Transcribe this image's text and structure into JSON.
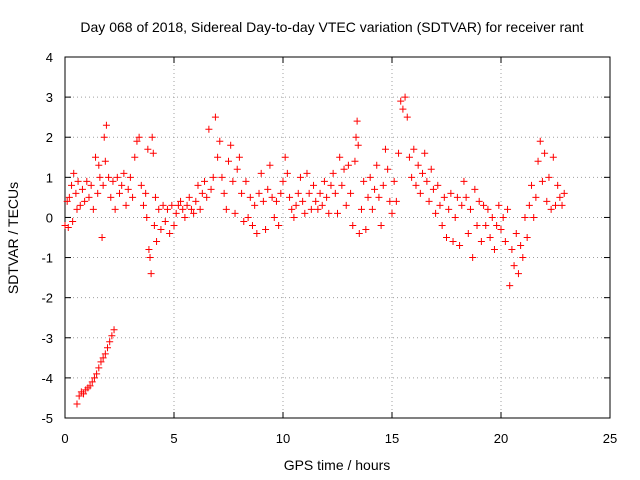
{
  "chart_data": {
    "type": "scatter",
    "title": "Day 068 of 2018, Sidereal Day-to-day VTEC variation (SDTVAR) for receiver rant",
    "xlabel": "GPS time / hours",
    "ylabel": "SDTVAR / TECUs",
    "xlim": [
      0,
      25
    ],
    "ylim": [
      -5,
      4
    ],
    "xticks": [
      0,
      5,
      10,
      15,
      20,
      25
    ],
    "xtick_labels": [
      "0",
      "5",
      "10",
      "15",
      "20",
      "25"
    ],
    "yticks": [
      -5,
      -4,
      -3,
      -2,
      -1,
      0,
      1,
      2,
      3,
      4
    ],
    "ytick_labels": [
      "-5",
      "-4",
      "-3",
      "-2",
      "-1",
      "0",
      "1",
      "2",
      "3",
      "4"
    ],
    "grid": true,
    "marker": "+",
    "series": [
      {
        "name": "SDTVAR",
        "color": "#ff0000",
        "points": [
          [
            0.0,
            -0.2
          ],
          [
            0.1,
            0.4
          ],
          [
            0.15,
            -0.25
          ],
          [
            0.2,
            0.5
          ],
          [
            0.3,
            0.8
          ],
          [
            0.35,
            -0.1
          ],
          [
            0.4,
            1.1
          ],
          [
            0.5,
            0.6
          ],
          [
            0.55,
            0.2
          ],
          [
            0.6,
            0.9
          ],
          [
            0.7,
            0.3
          ],
          [
            0.8,
            0.7
          ],
          [
            0.9,
            0.4
          ],
          [
            1.0,
            0.9
          ],
          [
            1.1,
            0.5
          ],
          [
            1.2,
            0.8
          ],
          [
            1.3,
            0.2
          ],
          [
            1.4,
            1.5
          ],
          [
            1.5,
            0.6
          ],
          [
            1.55,
            1.3
          ],
          [
            1.6,
            1.0
          ],
          [
            1.7,
            -0.5
          ],
          [
            1.75,
            0.8
          ],
          [
            1.8,
            2.0
          ],
          [
            1.85,
            1.4
          ],
          [
            1.9,
            2.3
          ],
          [
            2.0,
            1.0
          ],
          [
            2.1,
            0.5
          ],
          [
            2.2,
            0.9
          ],
          [
            2.3,
            0.2
          ],
          [
            2.4,
            1.0
          ],
          [
            2.5,
            0.6
          ],
          [
            2.6,
            0.8
          ],
          [
            2.7,
            1.1
          ],
          [
            2.8,
            0.3
          ],
          [
            2.9,
            0.7
          ],
          [
            3.0,
            1.0
          ],
          [
            3.1,
            0.5
          ],
          [
            3.2,
            1.5
          ],
          [
            3.3,
            1.9
          ],
          [
            3.4,
            2.0
          ],
          [
            3.5,
            0.8
          ],
          [
            3.6,
            0.3
          ],
          [
            3.7,
            0.6
          ],
          [
            3.75,
            0.0
          ],
          [
            3.8,
            1.7
          ],
          [
            3.85,
            -0.8
          ],
          [
            3.9,
            -1.0
          ],
          [
            3.95,
            -1.4
          ],
          [
            4.0,
            2.0
          ],
          [
            4.05,
            1.6
          ],
          [
            4.1,
            -0.2
          ],
          [
            4.15,
            0.5
          ],
          [
            4.2,
            -0.6
          ],
          [
            4.3,
            0.2
          ],
          [
            4.4,
            -0.3
          ],
          [
            4.5,
            0.3
          ],
          [
            4.6,
            -0.1
          ],
          [
            4.7,
            0.2
          ],
          [
            4.8,
            -0.4
          ],
          [
            4.9,
            0.3
          ],
          [
            5.0,
            -0.2
          ],
          [
            5.1,
            0.1
          ],
          [
            5.2,
            0.3
          ],
          [
            5.3,
            0.4
          ],
          [
            5.4,
            0.2
          ],
          [
            5.5,
            0.0
          ],
          [
            5.6,
            0.3
          ],
          [
            5.7,
            0.5
          ],
          [
            5.8,
            0.2
          ],
          [
            5.9,
            0.1
          ],
          [
            6.0,
            0.4
          ],
          [
            6.1,
            0.8
          ],
          [
            6.2,
            0.2
          ],
          [
            6.3,
            0.6
          ],
          [
            6.4,
            0.9
          ],
          [
            6.5,
            0.5
          ],
          [
            6.6,
            2.2
          ],
          [
            6.7,
            0.7
          ],
          [
            6.8,
            1.0
          ],
          [
            6.9,
            2.5
          ],
          [
            7.0,
            1.5
          ],
          [
            7.1,
            1.9
          ],
          [
            7.2,
            1.0
          ],
          [
            7.3,
            0.6
          ],
          [
            7.4,
            0.2
          ],
          [
            7.5,
            1.4
          ],
          [
            7.6,
            1.8
          ],
          [
            7.7,
            0.9
          ],
          [
            7.8,
            0.1
          ],
          [
            7.9,
            1.2
          ],
          [
            8.0,
            1.5
          ],
          [
            8.1,
            0.6
          ],
          [
            8.2,
            -0.1
          ],
          [
            8.3,
            0.9
          ],
          [
            8.4,
            0.0
          ],
          [
            8.5,
            0.5
          ],
          [
            8.6,
            -0.2
          ],
          [
            8.7,
            0.3
          ],
          [
            8.8,
            -0.4
          ],
          [
            8.9,
            0.6
          ],
          [
            9.0,
            1.1
          ],
          [
            9.1,
            0.4
          ],
          [
            9.2,
            -0.3
          ],
          [
            9.3,
            0.7
          ],
          [
            9.4,
            1.3
          ],
          [
            9.5,
            0.5
          ],
          [
            9.6,
            0.0
          ],
          [
            9.7,
            0.4
          ],
          [
            9.8,
            -0.2
          ],
          [
            9.9,
            0.6
          ],
          [
            10.0,
            0.9
          ],
          [
            10.1,
            1.5
          ],
          [
            10.2,
            1.1
          ],
          [
            10.3,
            0.5
          ],
          [
            10.4,
            0.2
          ],
          [
            10.5,
            0.0
          ],
          [
            10.6,
            0.3
          ],
          [
            10.7,
            0.6
          ],
          [
            10.8,
            1.0
          ],
          [
            10.9,
            0.4
          ],
          [
            11.0,
            0.1
          ],
          [
            11.1,
            1.1
          ],
          [
            11.2,
            0.6
          ],
          [
            11.3,
            0.2
          ],
          [
            11.4,
            0.8
          ],
          [
            11.5,
            0.4
          ],
          [
            11.6,
            0.2
          ],
          [
            11.7,
            0.6
          ],
          [
            11.8,
            0.3
          ],
          [
            11.9,
            0.9
          ],
          [
            12.0,
            0.5
          ],
          [
            12.1,
            0.1
          ],
          [
            12.2,
            0.8
          ],
          [
            12.3,
            1.1
          ],
          [
            12.4,
            0.6
          ],
          [
            12.5,
            0.1
          ],
          [
            12.6,
            1.5
          ],
          [
            12.7,
            0.8
          ],
          [
            12.8,
            1.2
          ],
          [
            12.9,
            0.3
          ],
          [
            13.0,
            1.3
          ],
          [
            13.1,
            0.6
          ],
          [
            13.2,
            -0.2
          ],
          [
            13.3,
            1.4
          ],
          [
            13.35,
            2.0
          ],
          [
            13.4,
            2.4
          ],
          [
            13.45,
            1.8
          ],
          [
            13.5,
            -0.4
          ],
          [
            13.6,
            0.2
          ],
          [
            13.7,
            0.9
          ],
          [
            13.8,
            -0.3
          ],
          [
            13.9,
            0.5
          ],
          [
            14.0,
            1.0
          ],
          [
            14.1,
            0.2
          ],
          [
            14.2,
            0.7
          ],
          [
            14.3,
            1.3
          ],
          [
            14.4,
            0.5
          ],
          [
            14.5,
            -0.2
          ],
          [
            14.6,
            0.8
          ],
          [
            14.7,
            1.7
          ],
          [
            14.8,
            1.2
          ],
          [
            14.9,
            0.4
          ],
          [
            15.0,
            0.1
          ],
          [
            15.1,
            0.9
          ],
          [
            15.2,
            0.4
          ],
          [
            15.3,
            1.6
          ],
          [
            15.4,
            2.9
          ],
          [
            15.5,
            2.7
          ],
          [
            15.6,
            3.0
          ],
          [
            15.7,
            2.5
          ],
          [
            15.8,
            1.5
          ],
          [
            15.9,
            1.0
          ],
          [
            16.0,
            1.7
          ],
          [
            16.1,
            0.8
          ],
          [
            16.2,
            1.3
          ],
          [
            16.3,
            0.6
          ],
          [
            16.4,
            1.1
          ],
          [
            16.5,
            1.6
          ],
          [
            16.6,
            0.9
          ],
          [
            16.7,
            0.4
          ],
          [
            16.8,
            1.2
          ],
          [
            16.9,
            0.7
          ],
          [
            17.0,
            0.1
          ],
          [
            17.1,
            0.8
          ],
          [
            17.2,
            0.3
          ],
          [
            17.3,
            -0.2
          ],
          [
            17.4,
            0.5
          ],
          [
            17.5,
            -0.5
          ],
          [
            17.6,
            0.2
          ],
          [
            17.7,
            0.6
          ],
          [
            17.8,
            -0.6
          ],
          [
            17.9,
            0.0
          ],
          [
            18.0,
            0.5
          ],
          [
            18.1,
            -0.7
          ],
          [
            18.2,
            0.3
          ],
          [
            18.3,
            0.9
          ],
          [
            18.4,
            0.5
          ],
          [
            18.5,
            -0.4
          ],
          [
            18.6,
            0.2
          ],
          [
            18.7,
            -1.0
          ],
          [
            18.8,
            0.7
          ],
          [
            18.9,
            -0.2
          ],
          [
            19.0,
            0.4
          ],
          [
            19.1,
            -0.6
          ],
          [
            19.2,
            0.3
          ],
          [
            19.3,
            -0.2
          ],
          [
            19.4,
            0.2
          ],
          [
            19.5,
            -0.5
          ],
          [
            19.6,
            0.0
          ],
          [
            19.7,
            -0.8
          ],
          [
            19.8,
            -0.2
          ],
          [
            19.9,
            0.3
          ],
          [
            20.0,
            -0.3
          ],
          [
            20.1,
            0.0
          ],
          [
            20.2,
            -0.6
          ],
          [
            20.3,
            0.2
          ],
          [
            20.4,
            -1.7
          ],
          [
            20.5,
            -0.8
          ],
          [
            20.6,
            -1.2
          ],
          [
            20.7,
            -0.4
          ],
          [
            20.8,
            -1.4
          ],
          [
            20.9,
            -0.7
          ],
          [
            21.0,
            -1.0
          ],
          [
            21.1,
            0.0
          ],
          [
            21.2,
            -0.5
          ],
          [
            21.3,
            0.3
          ],
          [
            21.4,
            0.8
          ],
          [
            21.5,
            0.0
          ],
          [
            21.6,
            0.5
          ],
          [
            21.7,
            1.4
          ],
          [
            21.8,
            1.9
          ],
          [
            21.9,
            0.9
          ],
          [
            22.0,
            1.6
          ],
          [
            22.1,
            0.4
          ],
          [
            22.2,
            1.0
          ],
          [
            22.3,
            0.2
          ],
          [
            22.4,
            1.5
          ],
          [
            22.5,
            0.3
          ],
          [
            22.6,
            0.8
          ],
          [
            22.7,
            0.5
          ],
          [
            22.8,
            0.3
          ],
          [
            22.9,
            0.6
          ],
          [
            0.55,
            -4.65
          ],
          [
            0.65,
            -4.45
          ],
          [
            0.75,
            -4.35
          ],
          [
            0.85,
            -4.4
          ],
          [
            0.95,
            -4.3
          ],
          [
            1.05,
            -4.25
          ],
          [
            1.15,
            -4.2
          ],
          [
            1.25,
            -4.1
          ],
          [
            1.35,
            -4.0
          ],
          [
            1.45,
            -3.9
          ],
          [
            1.55,
            -3.75
          ],
          [
            1.65,
            -3.6
          ],
          [
            1.75,
            -3.5
          ],
          [
            1.85,
            -3.4
          ],
          [
            1.95,
            -3.25
          ],
          [
            2.05,
            -3.1
          ],
          [
            2.15,
            -2.95
          ],
          [
            2.25,
            -2.8
          ]
        ]
      }
    ]
  }
}
